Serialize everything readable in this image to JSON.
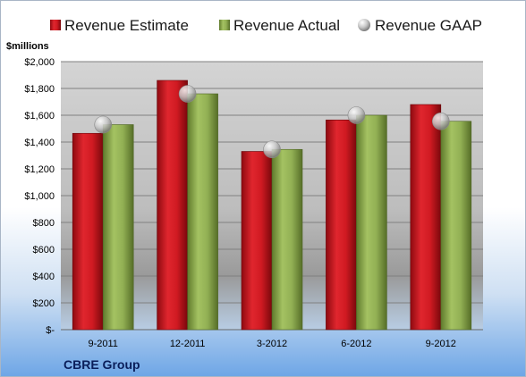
{
  "chart_data": {
    "type": "bar",
    "categories": [
      "9-2011",
      "12-2011",
      "3-2012",
      "6-2012",
      "9-2012"
    ],
    "series": [
      {
        "name": "Revenue Estimate",
        "kind": "bar",
        "color": "#c8141c",
        "values": [
          1465,
          1860,
          1330,
          1565,
          1680
        ]
      },
      {
        "name": "Revenue Actual",
        "kind": "bar",
        "color": "#8cac50",
        "values": [
          1530,
          1760,
          1345,
          1600,
          1555
        ]
      },
      {
        "name": "Revenue GAAP",
        "kind": "marker",
        "color": "#c0c0c0",
        "values": [
          1530,
          1760,
          1345,
          1600,
          1555
        ]
      }
    ],
    "ylabel": "$millions",
    "ylim": [
      0,
      2000
    ],
    "yticks": [
      0,
      200,
      400,
      600,
      800,
      1000,
      1200,
      1400,
      1600,
      1800,
      2000
    ],
    "ytick_labels": [
      "$-",
      "$200",
      "$400",
      "$600",
      "$800",
      "$1,000",
      "$1,200",
      "$1,400",
      "$1,600",
      "$1,800",
      "$2,000"
    ],
    "grid": true,
    "legend_position": "top"
  },
  "footer": {
    "company": "CBRE Group"
  }
}
